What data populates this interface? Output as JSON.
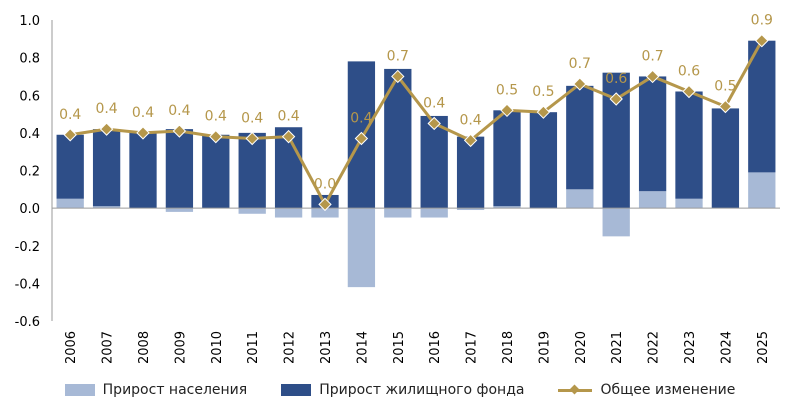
{
  "chart_data": {
    "type": "bar",
    "categories": [
      "2006",
      "2007",
      "2008",
      "2009",
      "2010",
      "2011",
      "2012",
      "2013",
      "2014",
      "2015",
      "2016",
      "2017",
      "2018",
      "2019",
      "2020",
      "2021",
      "2022",
      "2023",
      "2024",
      "2025"
    ],
    "series": [
      {
        "name": "Прирост населения",
        "kind": "bar",
        "color": "#a7b9d6",
        "values": [
          0.05,
          0.01,
          0.0,
          -0.02,
          0.0,
          -0.03,
          -0.05,
          -0.05,
          -0.42,
          -0.05,
          -0.05,
          -0.01,
          0.01,
          0.0,
          0.1,
          -0.15,
          0.09,
          0.05,
          0.0,
          0.19
        ]
      },
      {
        "name": "Прирост жилищного фонда",
        "kind": "bar",
        "color": "#2e4e88",
        "values": [
          0.34,
          0.41,
          0.4,
          0.42,
          0.39,
          0.4,
          0.43,
          0.07,
          0.78,
          0.74,
          0.49,
          0.38,
          0.51,
          0.51,
          0.55,
          0.72,
          0.61,
          0.57,
          0.53,
          0.7
        ]
      },
      {
        "name": "Общее изменение",
        "kind": "line",
        "color": "#b5974b",
        "values": [
          0.39,
          0.42,
          0.4,
          0.41,
          0.38,
          0.37,
          0.38,
          0.02,
          0.37,
          0.7,
          0.45,
          0.36,
          0.52,
          0.51,
          0.66,
          0.58,
          0.7,
          0.62,
          0.54,
          0.89
        ]
      }
    ],
    "data_labels": [
      "0.4",
      "0.4",
      "0.4",
      "0.4",
      "0.4",
      "0.4",
      "0.4",
      "0.0",
      "0.4",
      "0.7",
      "0.4",
      "0.4",
      "0.5",
      "0.5",
      "0.7",
      "0.6",
      "0.7",
      "0.6",
      "0.5",
      "0.9"
    ],
    "ylim": [
      -0.6,
      1.0
    ],
    "yticks": [
      "1.0",
      "0.8",
      "0.6",
      "0.4",
      "0.2",
      "0.0",
      "-0.2",
      "-0.4",
      "-0.6"
    ],
    "ytick_values": [
      1.0,
      0.8,
      0.6,
      0.4,
      0.2,
      0.0,
      -0.2,
      -0.4,
      -0.6
    ],
    "grid": false,
    "legend_position": "bottom",
    "title": "",
    "xlabel": "",
    "ylabel": ""
  }
}
